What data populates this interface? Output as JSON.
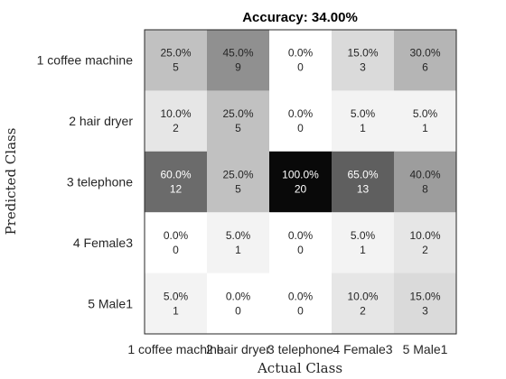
{
  "chart_data": {
    "type": "heatmap",
    "title": "Accuracy: 34.00%",
    "xlabel": "Actual Class",
    "ylabel": "Predicted Class",
    "x_categories": [
      "1 coffee machine",
      "2 hair dryer",
      "3 telephone",
      "4 Female3",
      "5 Male1"
    ],
    "y_categories": [
      "1 coffee machine",
      "2 hair dryer",
      "3 telephone",
      "4 Female3",
      "5 Male1"
    ],
    "percent_labels": [
      [
        "25.0%",
        "45.0%",
        "0.0%",
        "15.0%",
        "30.0%"
      ],
      [
        "10.0%",
        "25.0%",
        "0.0%",
        "5.0%",
        "5.0%"
      ],
      [
        "60.0%",
        "25.0%",
        "100.0%",
        "65.0%",
        "40.0%"
      ],
      [
        "0.0%",
        "5.0%",
        "0.0%",
        "5.0%",
        "10.0%"
      ],
      [
        "5.0%",
        "0.0%",
        "0.0%",
        "10.0%",
        "15.0%"
      ]
    ],
    "counts": [
      [
        5,
        9,
        0,
        3,
        6
      ],
      [
        2,
        5,
        0,
        1,
        1
      ],
      [
        12,
        5,
        20,
        13,
        8
      ],
      [
        0,
        1,
        0,
        1,
        2
      ],
      [
        1,
        0,
        0,
        2,
        3
      ]
    ],
    "colormap": "gray-reversed",
    "grid": false,
    "legend": "none"
  }
}
